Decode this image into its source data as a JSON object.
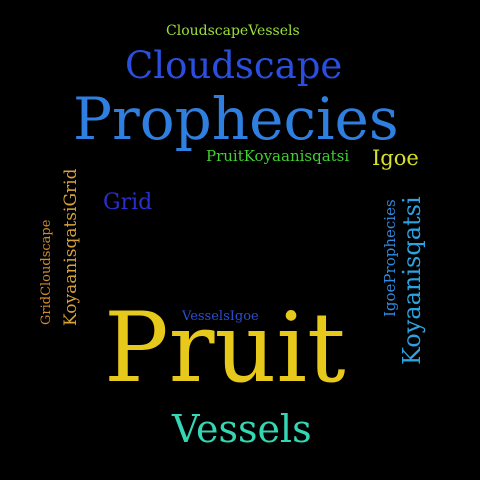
{
  "words": {
    "cloudscapevessels": {
      "text": "CloudscapeVessels",
      "color": "#9be13a"
    },
    "cloudscape": {
      "text": "Cloudscape",
      "color": "#2a4fe0"
    },
    "prophecies": {
      "text": "Prophecies",
      "color": "#2f7fe0"
    },
    "pruitkoyaanisqatsi": {
      "text": "PruitKoyaanisqatsi",
      "color": "#3fd12e"
    },
    "igoe": {
      "text": "Igoe",
      "color": "#d8e12a"
    },
    "grid": {
      "text": "Grid",
      "color": "#2b2fc9"
    },
    "vesselsigoe": {
      "text": "VesselsIgoe",
      "color": "#2b4fd0"
    },
    "pruit": {
      "text": "Pruit",
      "color": "#e6c91b"
    },
    "vessels": {
      "text": "Vessels",
      "color": "#34d6b3"
    },
    "gridcloudscape": {
      "text": "GridCloudscape",
      "color": "#d08b2a"
    },
    "koyaanisqatsigrid": {
      "text": "KoyaanisqatsiGrid",
      "color": "#d8a23a"
    },
    "igoeprophecies": {
      "text": "IgoeProphecies",
      "color": "#2f8ae0"
    },
    "koyaanisqatsi": {
      "text": "Koyaanisqatsi",
      "color": "#2ba3e0"
    }
  }
}
